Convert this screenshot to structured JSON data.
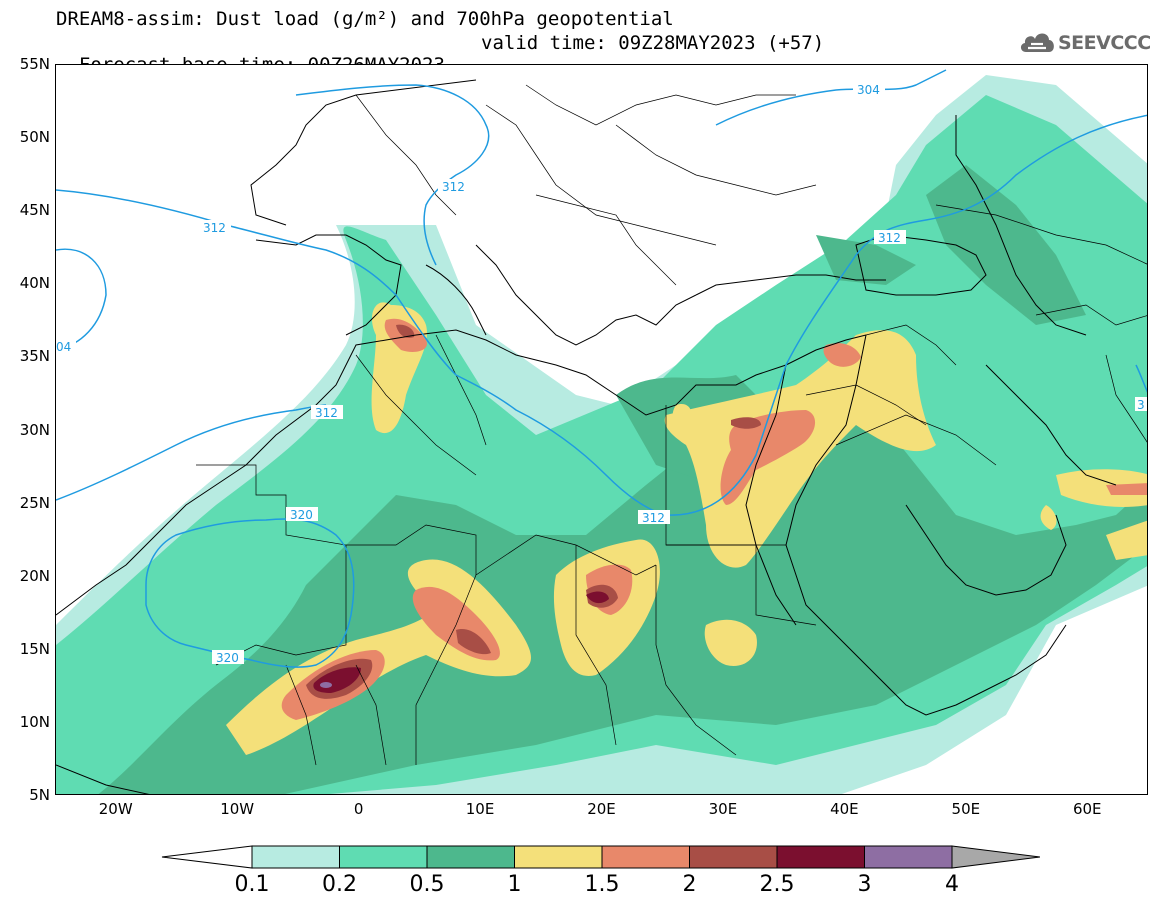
{
  "header": {
    "title_line1": "DREAM8-assim: Dust load (g/m²) and 700hPa geopotential",
    "title_line2": "Forecast base time: 00Z26MAY2023",
    "valid_time": "valid time: 09Z28MAY2023 (+57)"
  },
  "logo": {
    "text": "SEEVCCC",
    "icon": "cloud-icon",
    "color": "#6b6b6b"
  },
  "map": {
    "lon_range": [
      -25,
      65
    ],
    "lat_range": [
      5,
      55
    ],
    "lat_labels": [
      "55N",
      "50N",
      "45N",
      "40N",
      "35N",
      "30N",
      "25N",
      "20N",
      "15N",
      "10N",
      "5N"
    ],
    "lon_labels": [
      "20W",
      "10W",
      "0",
      "10E",
      "20E",
      "30E",
      "40E",
      "50E",
      "60E"
    ],
    "contour_labels": [
      "304",
      "312",
      "312",
      "312",
      "312",
      "312",
      "320",
      "320",
      "04",
      "3"
    ],
    "contour_color": "#1f9be0"
  },
  "colorbar": {
    "levels": [
      "0.1",
      "0.2",
      "0.5",
      "1",
      "1.5",
      "2",
      "2.5",
      "3",
      "4"
    ],
    "colors": [
      "#ffffff",
      "#b7ebe1",
      "#5fdcb2",
      "#4db88d",
      "#f4e07a",
      "#e8886a",
      "#a84e46",
      "#7b0f2f",
      "#8e6ea3",
      "#a8a8a8"
    ]
  }
}
